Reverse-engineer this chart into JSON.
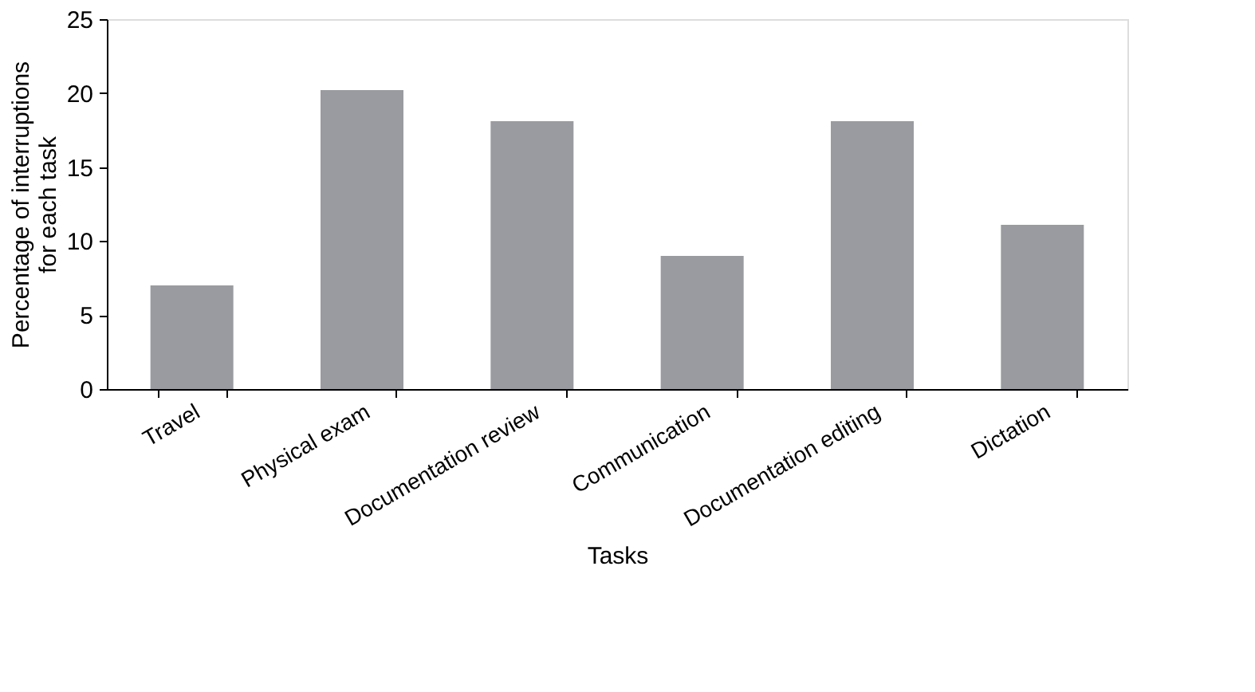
{
  "chart_data": {
    "type": "bar",
    "xlabel": "Tasks",
    "ylabel": "Percentage of interruptions\nfor each task",
    "categories": [
      "Travel",
      "Physical exam",
      "Documentation review",
      "Communication",
      "Documentation editing",
      "Dictation"
    ],
    "values": [
      7,
      20.2,
      18.1,
      9,
      18.1,
      11.1
    ],
    "color": "#9a9ba0",
    "ylim": [
      0,
      25
    ],
    "yticks": [
      0,
      5,
      10,
      15,
      20,
      25
    ],
    "grid": false
  }
}
